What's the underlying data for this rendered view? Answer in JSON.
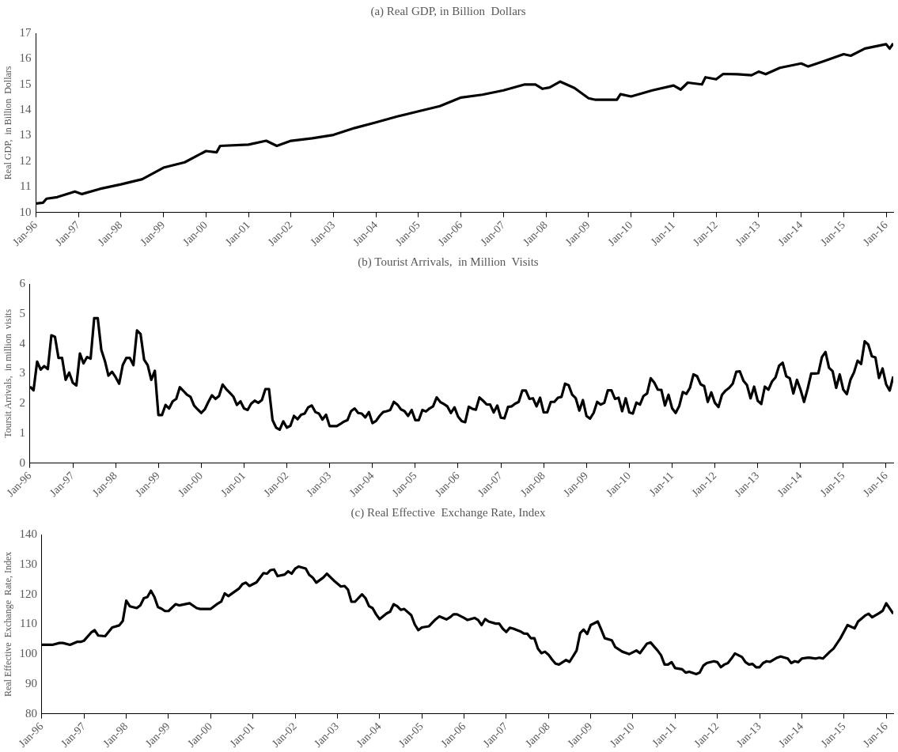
{
  "chart_data": [
    {
      "type": "line",
      "title": "(a) Real GDP, in Billion  Dollars",
      "ylabel": "Real GDP,  in Billion  Dollars",
      "color": "#000000",
      "x": [
        "1996-01",
        "1996-03",
        "1996-04",
        "1996-07",
        "1996-12",
        "1997-02",
        "1997-07",
        "1998-01",
        "1998-07",
        "1999-01",
        "1999-07",
        "2000-01",
        "2000-04",
        "2000-05",
        "2001-01",
        "2001-06",
        "2001-09",
        "2002-01",
        "2002-07",
        "2003-01",
        "2003-07",
        "2004-01",
        "2004-07",
        "2005-01",
        "2005-07",
        "2006-01",
        "2006-07",
        "2007-01",
        "2007-07",
        "2007-10",
        "2007-12",
        "2008-02",
        "2008-05",
        "2008-09",
        "2009-01",
        "2009-03",
        "2009-09",
        "2009-10",
        "2010-01",
        "2010-07",
        "2011-01",
        "2011-03",
        "2011-05",
        "2011-09",
        "2011-10",
        "2012-01",
        "2012-03",
        "2012-07",
        "2012-11",
        "2013-01",
        "2013-03",
        "2013-07",
        "2014-01",
        "2014-03",
        "2014-07",
        "2015-01",
        "2015-03",
        "2015-07",
        "2016-01",
        "2016-02",
        "2016-03"
      ],
      "values": [
        10.35,
        10.38,
        10.54,
        10.6,
        10.82,
        10.72,
        10.92,
        11.1,
        11.3,
        11.75,
        11.96,
        12.4,
        12.35,
        12.6,
        12.65,
        12.8,
        12.6,
        12.8,
        12.9,
        13.03,
        13.3,
        13.52,
        13.75,
        13.95,
        14.15,
        14.49,
        14.6,
        14.77,
        15.0,
        15.0,
        14.83,
        14.88,
        15.11,
        14.86,
        14.46,
        14.4,
        14.4,
        14.62,
        14.53,
        14.77,
        14.96,
        14.8,
        15.07,
        15.0,
        15.28,
        15.2,
        15.41,
        15.4,
        15.36,
        15.5,
        15.4,
        15.65,
        15.82,
        15.7,
        15.89,
        16.18,
        16.12,
        16.4,
        16.57,
        16.4,
        16.6
      ],
      "xlim": [
        "1996-01",
        "2016-03"
      ],
      "xticks": [
        {
          "value": "1996-01",
          "label": "Jan-96"
        },
        {
          "value": "1997-01",
          "label": "Jan-97"
        },
        {
          "value": "1998-01",
          "label": "Jan-98"
        },
        {
          "value": "1999-01",
          "label": "Jan-99"
        },
        {
          "value": "2000-01",
          "label": "Jan-00"
        },
        {
          "value": "2001-01",
          "label": "Jan-01"
        },
        {
          "value": "2002-01",
          "label": "Jan-02"
        },
        {
          "value": "2003-01",
          "label": "Jan-03"
        },
        {
          "value": "2004-01",
          "label": "Jan-04"
        },
        {
          "value": "2005-01",
          "label": "Jan-05"
        },
        {
          "value": "2006-01",
          "label": "Jan-06"
        },
        {
          "value": "2007-01",
          "label": "Jan-07"
        },
        {
          "value": "2008-01",
          "label": "Jan-08"
        },
        {
          "value": "2009-01",
          "label": "Jan-09"
        },
        {
          "value": "2010-01",
          "label": "Jan-10"
        },
        {
          "value": "2011-01",
          "label": "Jan-11"
        },
        {
          "value": "2012-01",
          "label": "Jan-12"
        },
        {
          "value": "2013-01",
          "label": "Jan-13"
        },
        {
          "value": "2014-01",
          "label": "Jan-14"
        },
        {
          "value": "2015-01",
          "label": "Jan-15"
        },
        {
          "value": "2016-01",
          "label": "Jan-16"
        }
      ],
      "ylim": [
        10,
        17
      ],
      "yticks": [
        10,
        11,
        12,
        13,
        14,
        15,
        16,
        17
      ]
    },
    {
      "type": "line",
      "title": "(b) Tourist Arrivals,  in Million  Visits",
      "ylabel": "Toursit Arrivals,  in million  visits",
      "color": "#000000",
      "x": [
        "1996-01",
        "1996-02",
        "1996-03",
        "1996-04",
        "1996-05",
        "1996-06",
        "1996-07",
        "1996-08",
        "1996-09",
        "1996-10",
        "1996-11",
        "1996-12",
        "1997-01",
        "1997-02",
        "1997-03",
        "1997-04",
        "1997-05",
        "1997-06",
        "1997-07",
        "1997-08",
        "1997-09",
        "1997-10",
        "1997-11",
        "1997-12",
        "1998-01",
        "1998-02",
        "1998-03",
        "1998-04",
        "1998-05",
        "1998-06",
        "1998-07",
        "1998-08",
        "1998-09",
        "1998-10",
        "1998-11",
        "1998-12",
        "1999-01",
        "1999-02",
        "1999-03",
        "1999-04",
        "1999-05",
        "1999-06",
        "1999-07",
        "1999-08",
        "1999-09",
        "1999-10",
        "1999-11",
        "1999-12",
        "2000-01",
        "2000-02",
        "2000-03",
        "2000-04",
        "2000-05",
        "2000-06",
        "2000-07",
        "2000-08",
        "2000-09",
        "2000-10",
        "2000-11",
        "2000-12",
        "2001-01",
        "2001-02",
        "2001-03",
        "2001-04",
        "2001-05",
        "2001-06",
        "2001-07",
        "2001-08",
        "2001-09",
        "2001-10",
        "2001-11",
        "2001-12",
        "2002-01",
        "2002-02",
        "2002-03",
        "2002-04",
        "2002-05",
        "2002-06",
        "2002-07",
        "2002-08",
        "2002-09",
        "2002-10",
        "2002-11",
        "2002-12",
        "2003-01",
        "2003-02",
        "2003-03",
        "2003-04",
        "2003-05",
        "2003-06",
        "2003-07",
        "2003-08",
        "2003-09",
        "2003-10",
        "2003-11",
        "2003-12",
        "2004-01",
        "2004-02",
        "2004-03",
        "2004-04",
        "2004-05",
        "2004-06",
        "2004-07",
        "2004-08",
        "2004-09",
        "2004-10",
        "2004-11",
        "2004-12",
        "2005-01",
        "2005-02",
        "2005-03",
        "2005-04",
        "2005-05",
        "2005-06",
        "2005-07",
        "2005-08",
        "2005-09",
        "2005-10",
        "2005-11",
        "2005-12",
        "2006-01",
        "2006-02",
        "2006-03",
        "2006-04",
        "2006-05",
        "2006-06",
        "2006-07",
        "2006-08",
        "2006-09",
        "2006-10",
        "2006-11",
        "2006-12",
        "2007-01",
        "2007-02",
        "2007-03",
        "2007-04",
        "2007-05",
        "2007-06",
        "2007-07",
        "2007-08",
        "2007-09",
        "2007-10",
        "2007-11",
        "2007-12",
        "2008-01",
        "2008-02",
        "2008-03",
        "2008-04",
        "2008-05",
        "2008-06",
        "2008-07",
        "2008-08",
        "2008-09",
        "2008-10",
        "2008-11",
        "2008-12",
        "2009-01",
        "2009-02",
        "2009-03",
        "2009-04",
        "2009-05",
        "2009-06",
        "2009-07",
        "2009-08",
        "2009-09",
        "2009-10",
        "2009-11",
        "2009-12",
        "2010-01",
        "2010-02",
        "2010-03",
        "2010-04",
        "2010-05",
        "2010-06",
        "2010-07",
        "2010-08",
        "2010-09",
        "2010-10",
        "2010-11",
        "2010-12",
        "2011-01",
        "2011-02",
        "2011-03",
        "2011-04",
        "2011-05",
        "2011-06",
        "2011-07",
        "2011-08",
        "2011-09",
        "2011-10",
        "2011-11",
        "2011-12",
        "2012-01",
        "2012-02",
        "2012-03",
        "2012-04",
        "2012-05",
        "2012-06",
        "2012-07",
        "2012-08",
        "2012-09",
        "2012-10",
        "2012-11",
        "2012-12",
        "2013-01",
        "2013-02",
        "2013-03",
        "2013-04",
        "2013-05",
        "2013-06",
        "2013-07",
        "2013-08",
        "2013-09",
        "2013-10",
        "2013-11",
        "2013-12",
        "2014-01",
        "2014-02",
        "2014-03",
        "2014-04",
        "2014-05",
        "2014-06",
        "2014-07",
        "2014-08",
        "2014-09",
        "2014-10",
        "2014-11",
        "2014-12",
        "2015-01",
        "2015-02",
        "2015-03",
        "2015-04",
        "2015-05",
        "2015-06",
        "2015-07",
        "2015-08",
        "2015-09",
        "2015-10",
        "2015-11",
        "2015-12",
        "2016-01",
        "2016-02",
        "2016-03"
      ],
      "values": [
        2.56,
        2.44,
        3.4,
        3.13,
        3.25,
        3.15,
        4.28,
        4.23,
        3.52,
        3.52,
        2.79,
        3.03,
        2.69,
        2.6,
        3.67,
        3.34,
        3.55,
        3.5,
        4.85,
        4.85,
        3.79,
        3.42,
        2.93,
        3.06,
        2.88,
        2.66,
        3.28,
        3.52,
        3.52,
        3.28,
        4.44,
        4.32,
        3.46,
        3.28,
        2.79,
        3.09,
        1.61,
        1.61,
        1.95,
        1.83,
        2.07,
        2.15,
        2.54,
        2.42,
        2.29,
        2.22,
        1.93,
        1.8,
        1.68,
        1.8,
        2.05,
        2.27,
        2.15,
        2.25,
        2.63,
        2.48,
        2.36,
        2.23,
        1.95,
        2.07,
        1.83,
        1.78,
        1.99,
        2.09,
        2.02,
        2.11,
        2.48,
        2.48,
        1.44,
        1.19,
        1.12,
        1.4,
        1.19,
        1.25,
        1.58,
        1.47,
        1.62,
        1.66,
        1.87,
        1.93,
        1.71,
        1.66,
        1.46,
        1.62,
        1.24,
        1.24,
        1.24,
        1.31,
        1.39,
        1.44,
        1.74,
        1.83,
        1.68,
        1.66,
        1.53,
        1.71,
        1.34,
        1.41,
        1.58,
        1.71,
        1.74,
        1.78,
        2.05,
        1.96,
        1.8,
        1.74,
        1.58,
        1.78,
        1.44,
        1.44,
        1.78,
        1.73,
        1.83,
        1.9,
        2.2,
        2.05,
        1.98,
        1.9,
        1.68,
        1.87,
        1.56,
        1.41,
        1.37,
        1.89,
        1.82,
        1.79,
        2.2,
        2.09,
        1.97,
        1.96,
        1.7,
        1.93,
        1.52,
        1.5,
        1.88,
        1.9,
        1.99,
        2.05,
        2.43,
        2.43,
        2.15,
        2.17,
        1.9,
        2.19,
        1.7,
        1.7,
        2.05,
        2.05,
        2.19,
        2.22,
        2.66,
        2.61,
        2.29,
        2.17,
        1.76,
        2.11,
        1.58,
        1.49,
        1.68,
        2.05,
        1.96,
        2.02,
        2.44,
        2.44,
        2.15,
        2.19,
        1.74,
        2.17,
        1.7,
        1.66,
        2.03,
        1.96,
        2.25,
        2.33,
        2.84,
        2.7,
        2.46,
        2.45,
        1.93,
        2.29,
        1.84,
        1.68,
        1.91,
        2.38,
        2.32,
        2.52,
        2.97,
        2.91,
        2.64,
        2.58,
        2.05,
        2.37,
        2.02,
        1.88,
        2.29,
        2.43,
        2.52,
        2.66,
        3.06,
        3.07,
        2.76,
        2.61,
        2.17,
        2.56,
        2.09,
        1.98,
        2.56,
        2.46,
        2.73,
        2.87,
        3.26,
        3.36,
        2.91,
        2.84,
        2.33,
        2.79,
        2.46,
        2.05,
        2.49,
        3.0,
        3.0,
        3.01,
        3.55,
        3.72,
        3.19,
        3.08,
        2.52,
        2.97,
        2.46,
        2.31,
        2.79,
        3.04,
        3.43,
        3.32,
        4.08,
        3.97,
        3.58,
        3.54,
        2.85,
        3.17,
        2.64,
        2.43,
        2.9
      ],
      "xlim": [
        "1996-01",
        "2016-03"
      ],
      "xticks": [
        {
          "value": "1996-01",
          "label": "Jan-96"
        },
        {
          "value": "1997-01",
          "label": "Jan-97"
        },
        {
          "value": "1998-01",
          "label": "Jan-98"
        },
        {
          "value": "1999-01",
          "label": "Jan-99"
        },
        {
          "value": "2000-01",
          "label": "Jan-00"
        },
        {
          "value": "2001-01",
          "label": "Jan-01"
        },
        {
          "value": "2002-01",
          "label": "Jan-02"
        },
        {
          "value": "2003-01",
          "label": "Jan-03"
        },
        {
          "value": "2004-01",
          "label": "Jan-04"
        },
        {
          "value": "2005-01",
          "label": "Jan-05"
        },
        {
          "value": "2006-01",
          "label": "Jan-06"
        },
        {
          "value": "2007-01",
          "label": "Jan-07"
        },
        {
          "value": "2008-01",
          "label": "Jan-08"
        },
        {
          "value": "2009-01",
          "label": "Jan-09"
        },
        {
          "value": "2010-01",
          "label": "Jan-10"
        },
        {
          "value": "2011-01",
          "label": "Jan-11"
        },
        {
          "value": "2012-01",
          "label": "Jan-12"
        },
        {
          "value": "2013-01",
          "label": "Jan-13"
        },
        {
          "value": "2014-01",
          "label": "Jan-14"
        },
        {
          "value": "2015-01",
          "label": "Jan-15"
        },
        {
          "value": "2016-01",
          "label": "Jan-16"
        }
      ],
      "ylim": [
        0,
        6
      ],
      "yticks": [
        0,
        1,
        2,
        3,
        4,
        5,
        6
      ]
    },
    {
      "type": "line",
      "title": "(c) Real Effective  Exchange Rate, Index",
      "ylabel": "Real Effective  Exchange  Rate, Index",
      "color": "#000000",
      "x": [
        "1996-01",
        "1996-04",
        "1996-06",
        "1996-07",
        "1996-09",
        "1996-11",
        "1996-12",
        "1997-01",
        "1997-03",
        "1997-04",
        "1997-05",
        "1997-07",
        "1997-09",
        "1997-11",
        "1997-12",
        "1998-01",
        "1998-02",
        "1998-04",
        "1998-05",
        "1998-06",
        "1998-07",
        "1998-08",
        "1998-09",
        "1998-10",
        "1998-11",
        "1998-12",
        "1999-01",
        "1999-03",
        "1999-04",
        "1999-07",
        "1999-09",
        "1999-10",
        "2000-01",
        "2000-03",
        "2000-04",
        "2000-05",
        "2000-06",
        "2000-09",
        "2000-10",
        "2000-11",
        "2000-12",
        "2001-02",
        "2001-04",
        "2001-05",
        "2001-06",
        "2001-07",
        "2001-08",
        "2001-10",
        "2001-11",
        "2001-12",
        "2002-01",
        "2002-02",
        "2002-04",
        "2002-05",
        "2002-06",
        "2002-07",
        "2002-09",
        "2002-10",
        "2002-12",
        "2003-02",
        "2003-03",
        "2003-04",
        "2003-05",
        "2003-06",
        "2003-08",
        "2003-09",
        "2003-10",
        "2003-11",
        "2003-12",
        "2004-01",
        "2004-03",
        "2004-04",
        "2004-05",
        "2004-06",
        "2004-07",
        "2004-08",
        "2004-10",
        "2004-11",
        "2004-12",
        "2005-01",
        "2005-03",
        "2005-04",
        "2005-05",
        "2005-06",
        "2005-08",
        "2005-09",
        "2005-10",
        "2005-11",
        "2006-01",
        "2006-02",
        "2006-04",
        "2006-05",
        "2006-06",
        "2006-07",
        "2006-08",
        "2006-10",
        "2006-11",
        "2006-12",
        "2007-01",
        "2007-02",
        "2007-03",
        "2007-05",
        "2007-06",
        "2007-07",
        "2007-08",
        "2007-09",
        "2007-10",
        "2007-11",
        "2007-12",
        "2008-01",
        "2008-02",
        "2008-03",
        "2008-04",
        "2008-06",
        "2008-07",
        "2008-09",
        "2008-10",
        "2008-11",
        "2008-12",
        "2009-01",
        "2009-03",
        "2009-04",
        "2009-05",
        "2009-07",
        "2009-08",
        "2009-10",
        "2009-12",
        "2010-02",
        "2010-03",
        "2010-05",
        "2010-06",
        "2010-08",
        "2010-09",
        "2010-10",
        "2010-11",
        "2010-12",
        "2011-01",
        "2011-03",
        "2011-04",
        "2011-05",
        "2011-07",
        "2011-08",
        "2011-09",
        "2011-10",
        "2011-12",
        "2012-01",
        "2012-02",
        "2012-03",
        "2012-04",
        "2012-05",
        "2012-06",
        "2012-08",
        "2012-09",
        "2012-10",
        "2012-11",
        "2012-12",
        "2013-01",
        "2013-02",
        "2013-03",
        "2013-04",
        "2013-06",
        "2013-07",
        "2013-09",
        "2013-10",
        "2013-11",
        "2013-12",
        "2014-01",
        "2014-03",
        "2014-05",
        "2014-06",
        "2014-07",
        "2014-09",
        "2014-10",
        "2014-12",
        "2015-02",
        "2015-04",
        "2015-05",
        "2015-07",
        "2015-08",
        "2015-09",
        "2015-11",
        "2015-12",
        "2016-01",
        "2016-03"
      ],
      "values": [
        103.1,
        103.1,
        103.7,
        103.7,
        103.1,
        104.1,
        104.1,
        104.5,
        107.2,
        108,
        106.2,
        106,
        108.9,
        109.6,
        111.1,
        117.9,
        116,
        115.4,
        116.3,
        118.7,
        119.1,
        121.2,
        119.1,
        115.7,
        115.2,
        114.4,
        114.4,
        116.7,
        116.3,
        117,
        115.4,
        115.1,
        115.1,
        116.9,
        117.6,
        120.3,
        119.4,
        121.9,
        123.4,
        123.9,
        122.8,
        124,
        127.1,
        126.9,
        128.1,
        128.3,
        126.1,
        126.6,
        127.7,
        126.9,
        128.6,
        129.3,
        128.6,
        126.5,
        125.6,
        123.9,
        125.6,
        126.9,
        124.6,
        122.6,
        122.8,
        121.6,
        117.5,
        117.5,
        120,
        118.7,
        116,
        115.4,
        113.3,
        111.7,
        113.6,
        114.2,
        116.7,
        116,
        114.8,
        115.1,
        113,
        109.9,
        108,
        108.9,
        109.3,
        110.5,
        111.7,
        112.6,
        111.6,
        112.3,
        113.3,
        113.3,
        112.1,
        111.4,
        112.1,
        111.4,
        109.7,
        111.7,
        110.9,
        110.2,
        110.2,
        108.5,
        107.4,
        108.8,
        108.5,
        107.6,
        106.9,
        106.8,
        105.3,
        105.3,
        101.8,
        100.3,
        100.8,
        99.8,
        98.2,
        96.8,
        96.5,
        98,
        97.4,
        101.2,
        107,
        108.2,
        106.7,
        109.7,
        110.9,
        108.2,
        105.3,
        104.6,
        102.3,
        100.8,
        100,
        101.2,
        100.3,
        103.5,
        103.9,
        101.2,
        99.6,
        96.5,
        96.5,
        97.3,
        95.3,
        94.9,
        93.8,
        94.1,
        93.3,
        93.8,
        96.1,
        97,
        97.6,
        97.3,
        95.6,
        96.5,
        97,
        98.5,
        100.2,
        99,
        97.3,
        96.5,
        96.7,
        95.6,
        95.6,
        97,
        97.6,
        97.4,
        98.8,
        99.2,
        98.5,
        97,
        97.6,
        97.3,
        98.5,
        98.8,
        98.5,
        98.8,
        98.5,
        100.8,
        101.8,
        105.3,
        109.7,
        108.6,
        110.9,
        112.9,
        113.5,
        112.3,
        113.7,
        114.5,
        117,
        113.5
      ],
      "xlim": [
        "1996-01",
        "2016-03"
      ],
      "xticks": [
        {
          "value": "1996-01",
          "label": "Jan-96"
        },
        {
          "value": "1997-01",
          "label": "Jan-97"
        },
        {
          "value": "1998-01",
          "label": "Jan-98"
        },
        {
          "value": "1999-01",
          "label": "Jan-99"
        },
        {
          "value": "2000-01",
          "label": "Jan-00"
        },
        {
          "value": "2001-01",
          "label": "Jan-01"
        },
        {
          "value": "2002-01",
          "label": "Jan-02"
        },
        {
          "value": "2003-01",
          "label": "Jan-03"
        },
        {
          "value": "2004-01",
          "label": "Jan-04"
        },
        {
          "value": "2005-01",
          "label": "Jan-05"
        },
        {
          "value": "2006-01",
          "label": "Jan-06"
        },
        {
          "value": "2007-01",
          "label": "Jan-07"
        },
        {
          "value": "2008-01",
          "label": "Jan-08"
        },
        {
          "value": "2009-01",
          "label": "Jan-09"
        },
        {
          "value": "2010-01",
          "label": "Jan-10"
        },
        {
          "value": "2011-01",
          "label": "Jan-11"
        },
        {
          "value": "2012-01",
          "label": "Jan-12"
        },
        {
          "value": "2013-01",
          "label": "Jan-13"
        },
        {
          "value": "2014-01",
          "label": "Jan-14"
        },
        {
          "value": "2015-01",
          "label": "Jan-15"
        },
        {
          "value": "2016-01",
          "label": "Jan-16"
        }
      ],
      "ylim": [
        80,
        140
      ],
      "yticks": [
        80,
        90,
        100,
        110,
        120,
        130,
        140
      ]
    }
  ]
}
